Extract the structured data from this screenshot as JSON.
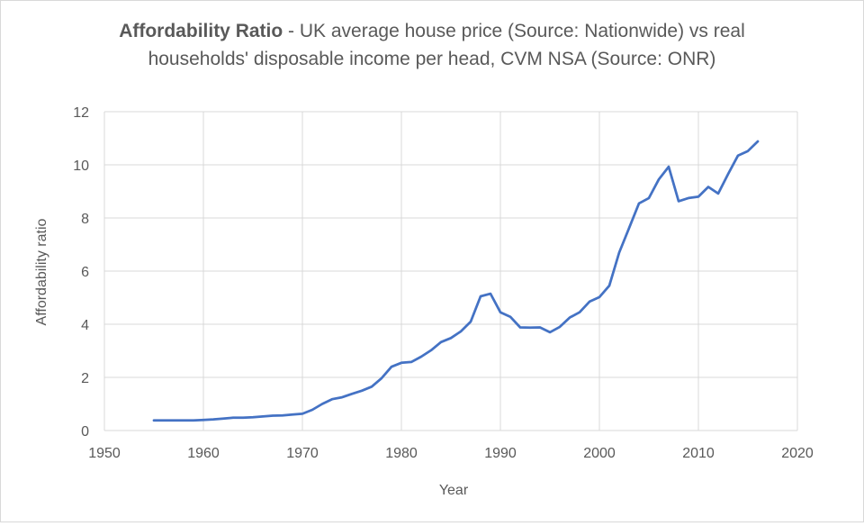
{
  "chart_data": {
    "type": "line",
    "title_bold": "Affordability Ratio",
    "title_rest": " -  UK average house price (Source: Nationwide) vs real",
    "title_line2": "households' disposable income per head, CVM NSA (Source: ONR)",
    "xlabel": "Year",
    "ylabel": "Affordability ratio",
    "xlim": [
      1950,
      2020
    ],
    "ylim": [
      0,
      12
    ],
    "x_ticks": [
      "1950",
      "1960",
      "1970",
      "1980",
      "1990",
      "2000",
      "2010",
      "2020"
    ],
    "y_ticks": [
      "0",
      "2",
      "4",
      "6",
      "8",
      "10",
      "12"
    ],
    "grid": true,
    "line_color": "#4472c4",
    "grid_color": "#d9d9d9",
    "series": [
      {
        "x": [
          1955,
          1956,
          1957,
          1958,
          1959,
          1960,
          1961,
          1962,
          1963,
          1964,
          1965,
          1966,
          1967,
          1968,
          1969,
          1970,
          1971,
          1972,
          1973,
          1974,
          1975,
          1976,
          1977,
          1978,
          1979,
          1980,
          1981,
          1982,
          1983,
          1984,
          1985,
          1986,
          1987,
          1988,
          1989,
          1990,
          1991,
          1992,
          1993,
          1994,
          1995,
          1996,
          1997,
          1998,
          1999,
          2000,
          2001,
          2002,
          2003,
          2004,
          2005,
          2006,
          2007,
          2008,
          2009,
          2010,
          2011,
          2012,
          2013,
          2014,
          2015,
          2016
        ],
        "values": [
          0.38,
          0.38,
          0.38,
          0.38,
          0.38,
          0.4,
          0.42,
          0.45,
          0.48,
          0.48,
          0.5,
          0.53,
          0.56,
          0.57,
          0.6,
          0.63,
          0.78,
          1.0,
          1.18,
          1.25,
          1.38,
          1.5,
          1.65,
          1.97,
          2.4,
          2.55,
          2.58,
          2.78,
          3.02,
          3.33,
          3.48,
          3.73,
          4.1,
          5.05,
          5.15,
          4.45,
          4.28,
          3.88,
          3.87,
          3.88,
          3.7,
          3.9,
          4.25,
          4.45,
          4.85,
          5.02,
          5.45,
          6.7,
          7.62,
          8.55,
          8.75,
          9.45,
          9.93,
          8.63,
          8.75,
          8.8,
          9.17,
          8.92,
          9.65,
          10.35,
          10.52,
          10.88
        ]
      }
    ]
  }
}
